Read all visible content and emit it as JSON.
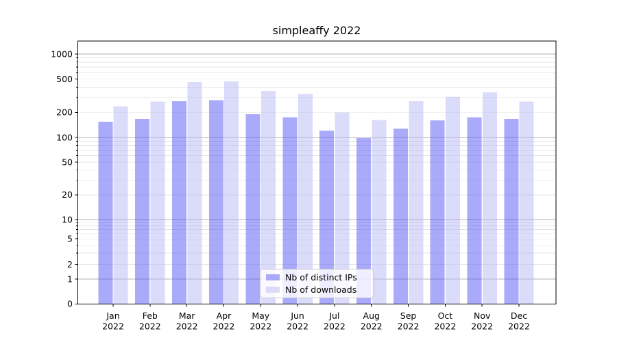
{
  "chart_data": {
    "type": "bar",
    "title": "simpleaffy 2022",
    "categories": [
      "Jan 2022",
      "Feb 2022",
      "Mar 2022",
      "Apr 2022",
      "May 2022",
      "Jun 2022",
      "Jul 2022",
      "Aug 2022",
      "Sep 2022",
      "Oct 2022",
      "Nov 2022",
      "Dec 2022"
    ],
    "series": [
      {
        "name": "Nb of distinct IPs",
        "color": "#5555f5",
        "values": [
          154,
          166,
          272,
          281,
          190,
          174,
          121,
          98,
          128,
          161,
          175,
          166
        ]
      },
      {
        "name": "Nb of downloads",
        "color": "#b7b7f5",
        "values": [
          237,
          269,
          460,
          468,
          360,
          332,
          199,
          162,
          272,
          307,
          347,
          270
        ]
      }
    ],
    "bar_opacity": 0.5,
    "yscale": "symlog",
    "yticks": [
      0,
      1,
      2,
      5,
      10,
      20,
      50,
      100,
      200,
      500,
      1000
    ],
    "ylim": [
      0,
      1430
    ],
    "xlabel": "",
    "ylabel": "",
    "grid": true,
    "legend_position": "lower center"
  },
  "legend": {
    "items": [
      "Nb of distinct IPs",
      "Nb of downloads"
    ]
  },
  "colors": {
    "bar_ips": "#5555f5",
    "bar_downloads": "#b7b7f5",
    "bar_ips_rendered": "#aaaaf9",
    "bar_downloads_rendered": "#dbdbf9",
    "grid_major": "#b0b0b0",
    "grid_minor": "#e4e4e4",
    "spine": "#000000",
    "text": "#000000",
    "legend_border": "#cccccc"
  }
}
